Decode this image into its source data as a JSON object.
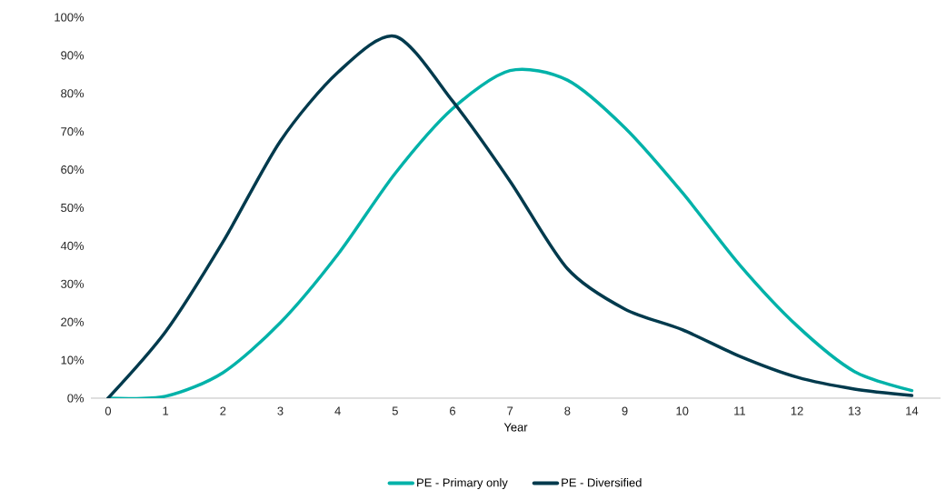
{
  "chart_data": {
    "type": "line",
    "xlabel": "Year",
    "x": [
      0,
      1,
      2,
      3,
      4,
      5,
      6,
      7,
      8,
      9,
      10,
      11,
      12,
      13,
      14
    ],
    "series": [
      {
        "name": "PE - Primary only",
        "color": "#00b2a9",
        "values": [
          0,
          0.5,
          6.7,
          19.8,
          37.7,
          59,
          76,
          86,
          83.5,
          71,
          54,
          35,
          19,
          7,
          2
        ]
      },
      {
        "name": "PE - Diversified",
        "color": "#003a4d",
        "values": [
          0,
          17.4,
          41,
          67.5,
          85.5,
          95,
          78,
          57,
          34,
          23.4,
          18,
          11,
          5.5,
          2.4,
          0.7
        ]
      }
    ],
    "xlim": [
      -0.3,
      14.5
    ],
    "ylim": [
      0,
      100
    ],
    "xticks": [
      0,
      1,
      2,
      3,
      4,
      5,
      6,
      7,
      8,
      9,
      10,
      11,
      12,
      13,
      14
    ],
    "yticks": [
      {
        "value": 0,
        "label": "0%"
      },
      {
        "value": 10,
        "label": "10%"
      },
      {
        "value": 20,
        "label": "20%"
      },
      {
        "value": 30,
        "label": "30%"
      },
      {
        "value": 40,
        "label": "40%"
      },
      {
        "value": 50,
        "label": "50%"
      },
      {
        "value": 60,
        "label": "60%"
      },
      {
        "value": 70,
        "label": "70%"
      },
      {
        "value": 80,
        "label": "80%"
      },
      {
        "value": 90,
        "label": "90%"
      },
      {
        "value": 100,
        "label": "100%"
      }
    ],
    "grid": false,
    "legend": "bottom"
  }
}
